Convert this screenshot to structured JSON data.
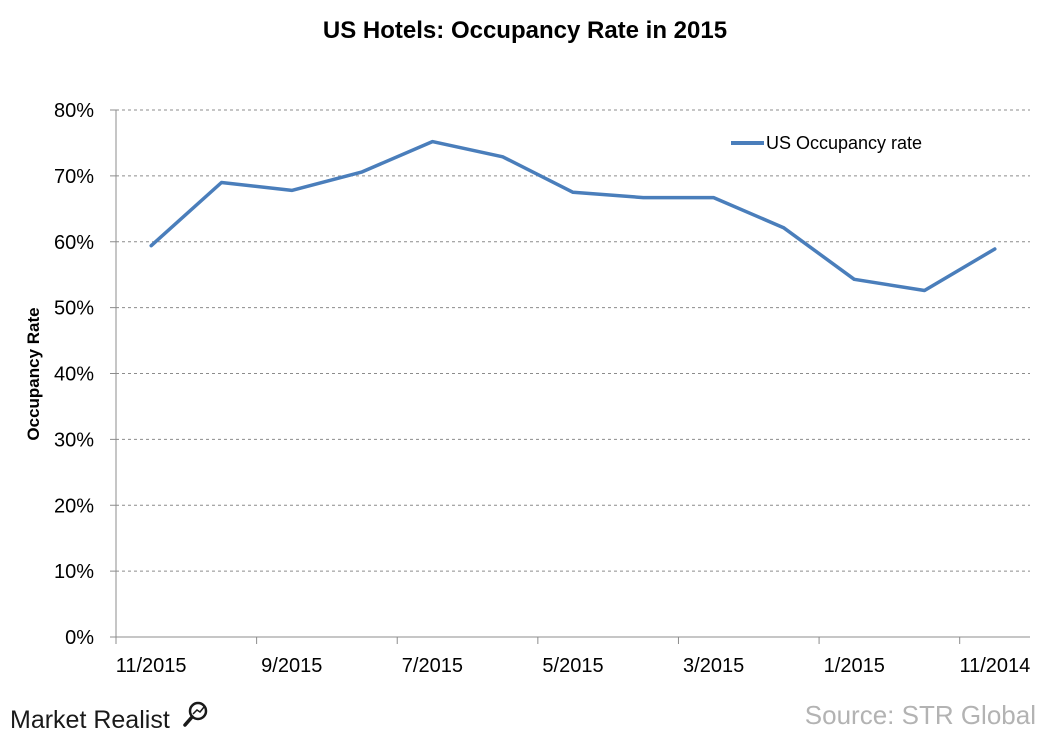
{
  "chart_data": {
    "type": "line",
    "title": "US Hotels: Occupancy Rate in 2015",
    "xlabel": "",
    "ylabel": "Occupancy Rate",
    "ylim": [
      0,
      0.8
    ],
    "yticks": [
      "0%",
      "10%",
      "20%",
      "30%",
      "40%",
      "50%",
      "60%",
      "70%",
      "80%"
    ],
    "x_tick_labels": [
      "11/2015",
      "9/2015",
      "7/2015",
      "5/2015",
      "3/2015",
      "1/2015",
      "11/2014"
    ],
    "x": [
      "11/2015",
      "10/2015",
      "9/2015",
      "8/2015",
      "7/2015",
      "6/2015",
      "5/2015",
      "4/2015",
      "3/2015",
      "2/2015",
      "1/2015",
      "12/2014",
      "11/2014"
    ],
    "series": [
      {
        "name": "US Occupancy rate",
        "color": "#4a7ebb",
        "values": [
          0.594,
          0.69,
          0.678,
          0.706,
          0.752,
          0.729,
          0.675,
          0.667,
          0.667,
          0.621,
          0.543,
          0.526,
          0.589
        ]
      }
    ],
    "grid": true,
    "legend_position": "top-right"
  },
  "footer": {
    "brand": "Market Realist",
    "source": "Source: STR Global"
  }
}
